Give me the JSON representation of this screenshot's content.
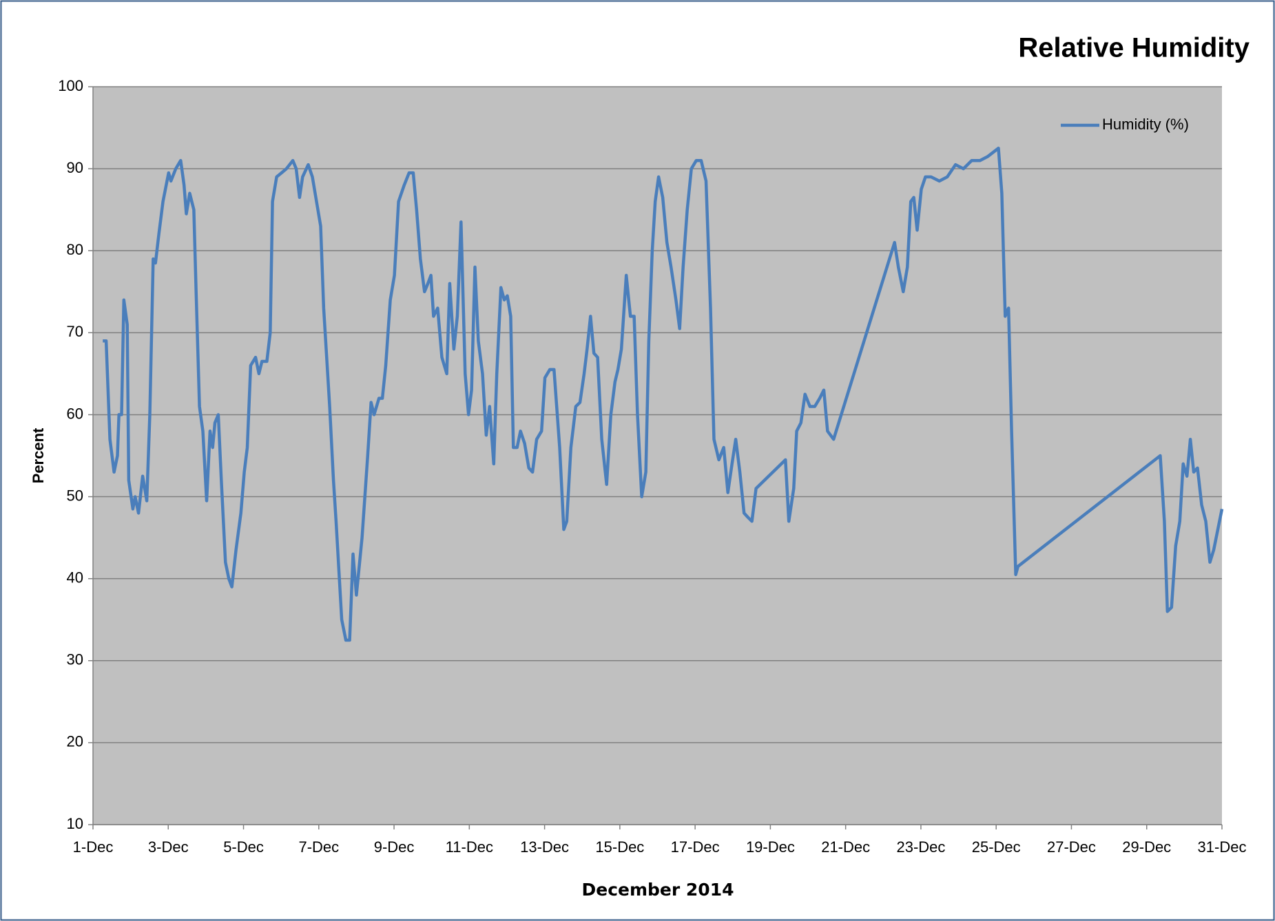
{
  "chart_data": {
    "type": "line",
    "title": "Relative Humidity",
    "x_label": "December 2014",
    "y_label": "Percent",
    "x": [
      1.26,
      1.35,
      1.45,
      1.56,
      1.65,
      1.69,
      1.76,
      1.82,
      1.91,
      1.95,
      2.06,
      2.12,
      2.21,
      2.32,
      2.43,
      2.51,
      2.6,
      2.66,
      2.75,
      2.86,
      3.01,
      3.07,
      3.2,
      3.33,
      3.42,
      3.48,
      3.57,
      3.68,
      3.74,
      3.83,
      3.92,
      4.02,
      4.11,
      4.18,
      4.24,
      4.33,
      4.41,
      4.52,
      4.61,
      4.69,
      4.8,
      4.93,
      5.02,
      5.1,
      5.19,
      5.32,
      5.41,
      5.49,
      5.62,
      5.71,
      5.77,
      5.88,
      6.01,
      6.14,
      6.31,
      6.4,
      6.49,
      6.57,
      6.72,
      6.83,
      6.94,
      7.05,
      7.13,
      7.29,
      7.39,
      7.46,
      7.61,
      7.72,
      7.82,
      7.91,
      8.0,
      8.15,
      8.3,
      8.39,
      8.47,
      8.6,
      8.69,
      8.78,
      8.9,
      9.01,
      9.12,
      9.27,
      9.4,
      9.51,
      9.6,
      9.7,
      9.81,
      9.9,
      9.98,
      10.05,
      10.16,
      10.27,
      10.4,
      10.48,
      10.59,
      10.68,
      10.78,
      10.89,
      10.98,
      11.06,
      11.15,
      11.24,
      11.35,
      11.45,
      11.54,
      11.65,
      11.73,
      11.84,
      11.93,
      12.01,
      12.1,
      12.17,
      12.27,
      12.36,
      12.47,
      12.58,
      12.68,
      12.79,
      12.92,
      13.01,
      13.14,
      13.25,
      13.4,
      13.51,
      13.59,
      13.7,
      13.83,
      13.94,
      14.05,
      14.13,
      14.22,
      14.31,
      14.41,
      14.52,
      14.65,
      14.76,
      14.87,
      14.95,
      15.04,
      15.17,
      15.28,
      15.38,
      15.47,
      15.58,
      15.69,
      15.77,
      15.86,
      15.94,
      16.03,
      16.14,
      16.25,
      16.36,
      16.49,
      16.59,
      16.68,
      16.79,
      16.9,
      17.03,
      17.16,
      17.29,
      17.41,
      17.5,
      17.63,
      17.76,
      17.87,
      17.98,
      18.08,
      18.19,
      18.3,
      18.4,
      18.51,
      18.62,
      19.4,
      19.49,
      19.62,
      19.7,
      19.81,
      19.92,
      20.05,
      20.18,
      20.31,
      20.42,
      20.52,
      20.68,
      22.3,
      22.4,
      22.53,
      22.64,
      22.73,
      22.81,
      22.9,
      23.01,
      23.12,
      23.27,
      23.49,
      23.7,
      23.92,
      24.13,
      24.35,
      24.57,
      24.78,
      25.06,
      25.15,
      25.24,
      25.33,
      25.41,
      25.52,
      25.58,
      29.36,
      29.47,
      29.55,
      29.66,
      29.77,
      29.88,
      29.97,
      30.07,
      30.16,
      30.25,
      30.35,
      30.46,
      30.57,
      30.68,
      30.78,
      30.89,
      31.0
    ],
    "series": [
      {
        "name": "Humidity (%)",
        "color": "#4a7ebb",
        "values": [
          69,
          69,
          57,
          53,
          55,
          60,
          60,
          74,
          71,
          52,
          48.5,
          50,
          48,
          52.5,
          49.5,
          60,
          79,
          78.5,
          82,
          86,
          89.5,
          88.5,
          90,
          91,
          88,
          84.5,
          87,
          85,
          75,
          61,
          58,
          49.5,
          58,
          56,
          59,
          60,
          52,
          42,
          40,
          39,
          43.5,
          48,
          53,
          56,
          66,
          67,
          65,
          66.5,
          66.5,
          70,
          86,
          89,
          89.5,
          90,
          91,
          90,
          86.5,
          89,
          90.5,
          89,
          86,
          83,
          73,
          61,
          52,
          47,
          35,
          32.5,
          32.5,
          43,
          38,
          45,
          55,
          61.5,
          60,
          62,
          62,
          66,
          74,
          77,
          86,
          88,
          89.5,
          89.5,
          85,
          79,
          75,
          76,
          77,
          72,
          73,
          67,
          65,
          76,
          68,
          72,
          83.5,
          65,
          60,
          63,
          78,
          69,
          65,
          57.5,
          61,
          54,
          65,
          75.5,
          74,
          74.5,
          72,
          56,
          56,
          58,
          56.5,
          53.5,
          53,
          57,
          58,
          64.5,
          65.5,
          65.5,
          56,
          46,
          47,
          56,
          61,
          61.5,
          65,
          68,
          72,
          67.5,
          67,
          57,
          51.5,
          60,
          64,
          65.5,
          68,
          77,
          72,
          72,
          60,
          50,
          53,
          69,
          80,
          86,
          89,
          86.5,
          81,
          78,
          74,
          70.5,
          78,
          85,
          90,
          91,
          91,
          88.5,
          73,
          57,
          54.5,
          56,
          50.5,
          54,
          57,
          53,
          48,
          47.5,
          47,
          51,
          54.5,
          47,
          51,
          58,
          59,
          62.5,
          61,
          61,
          62,
          63,
          58,
          57,
          81,
          78,
          75,
          78,
          86,
          86.5,
          82.5,
          87.5,
          89,
          89,
          88.5,
          89,
          90.5,
          90,
          91,
          91,
          91.5,
          92.5,
          87,
          72,
          73,
          58,
          40.5,
          41.5,
          55,
          47,
          36,
          36.5,
          44,
          47,
          54,
          52.5,
          57,
          53,
          53.5,
          49,
          47,
          42,
          43.5,
          46,
          48.5
        ]
      }
    ],
    "xlim": [
      1,
      31
    ],
    "xticks": [
      {
        "value": 1,
        "label": "1-Dec"
      },
      {
        "value": 3,
        "label": "3-Dec"
      },
      {
        "value": 5,
        "label": "5-Dec"
      },
      {
        "value": 7,
        "label": "7-Dec"
      },
      {
        "value": 9,
        "label": "9-Dec"
      },
      {
        "value": 11,
        "label": "11-Dec"
      },
      {
        "value": 13,
        "label": "13-Dec"
      },
      {
        "value": 15,
        "label": "15-Dec"
      },
      {
        "value": 17,
        "label": "17-Dec"
      },
      {
        "value": 19,
        "label": "19-Dec"
      },
      {
        "value": 21,
        "label": "21-Dec"
      },
      {
        "value": 23,
        "label": "23-Dec"
      },
      {
        "value": 25,
        "label": "25-Dec"
      },
      {
        "value": 27,
        "label": "27-Dec"
      },
      {
        "value": 29,
        "label": "29-Dec"
      },
      {
        "value": 31,
        "label": "31-Dec"
      }
    ],
    "ylim": [
      10,
      100
    ],
    "yticks": [
      10,
      20,
      30,
      40,
      50,
      60,
      70,
      80,
      90,
      100
    ],
    "grid": true,
    "legend": "upper right"
  }
}
